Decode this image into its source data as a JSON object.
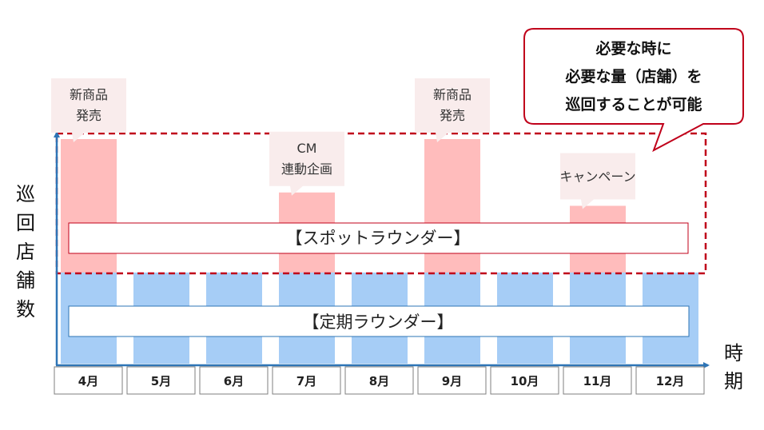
{
  "y_axis_label": [
    "巡",
    "回",
    "店",
    "舗",
    "数"
  ],
  "x_axis_label": [
    "時",
    "期"
  ],
  "months": [
    "4月",
    "5月",
    "6月",
    "7月",
    "8月",
    "9月",
    "10月",
    "11月",
    "12月"
  ],
  "spot_heights": [
    1,
    0,
    0,
    0.6,
    0,
    1,
    0,
    0.5,
    0
  ],
  "bands": {
    "spot": "【スポットラウンダー】",
    "regular": "【定期ラウンダー】"
  },
  "events": [
    {
      "month_index": 0,
      "lines": [
        "新商品",
        "発売"
      ]
    },
    {
      "month_index": 3,
      "lines": [
        "CM",
        "連動企画"
      ]
    },
    {
      "month_index": 5,
      "lines": [
        "新商品",
        "発売"
      ]
    },
    {
      "month_index": 7,
      "lines": [
        "キャンペーン"
      ]
    }
  ],
  "callout": {
    "lines": [
      "必要な時に",
      "必要な量（店舗）を",
      "巡回することが可能"
    ]
  },
  "colors": {
    "regular_bar": "#a6cdf6",
    "spot_bar": "#ffbcbc",
    "bubble": "#f9ecec",
    "axis": "#2e75b6",
    "dashed_frame": "#c0001a",
    "callout_border": "#c0001a"
  }
}
